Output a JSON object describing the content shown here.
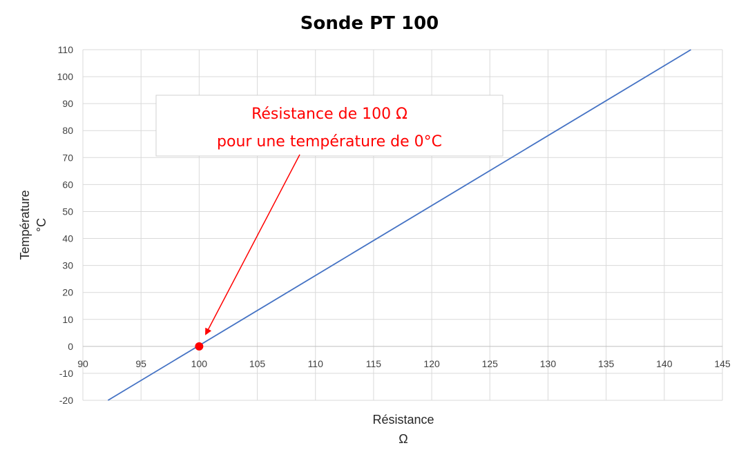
{
  "chart_data": {
    "type": "line",
    "title": "Sonde  PT 100",
    "xlabel": [
      "Résistance",
      "Ω"
    ],
    "ylabel": [
      "Température",
      "°C"
    ],
    "xlim": [
      90,
      145
    ],
    "ylim": [
      -20,
      110
    ],
    "x_ticks": [
      90,
      95,
      100,
      105,
      110,
      115,
      120,
      125,
      130,
      135,
      140,
      145
    ],
    "y_ticks": [
      -20,
      -10,
      0,
      10,
      20,
      30,
      40,
      50,
      60,
      70,
      80,
      90,
      100,
      110
    ],
    "grid": true,
    "series": [
      {
        "x": [
          92.16,
          142.29
        ],
        "y": [
          -20,
          110
        ],
        "color": "#4472c4"
      }
    ],
    "highlight_point": {
      "x": 100,
      "y": 0,
      "color": "#ff0000"
    },
    "annotation": {
      "lines": [
        "Résistance  de  100 Ω",
        "pour  une  température  de  0°C"
      ],
      "color": "#ff0000",
      "points_to": {
        "x": 100,
        "y": 0
      }
    }
  }
}
